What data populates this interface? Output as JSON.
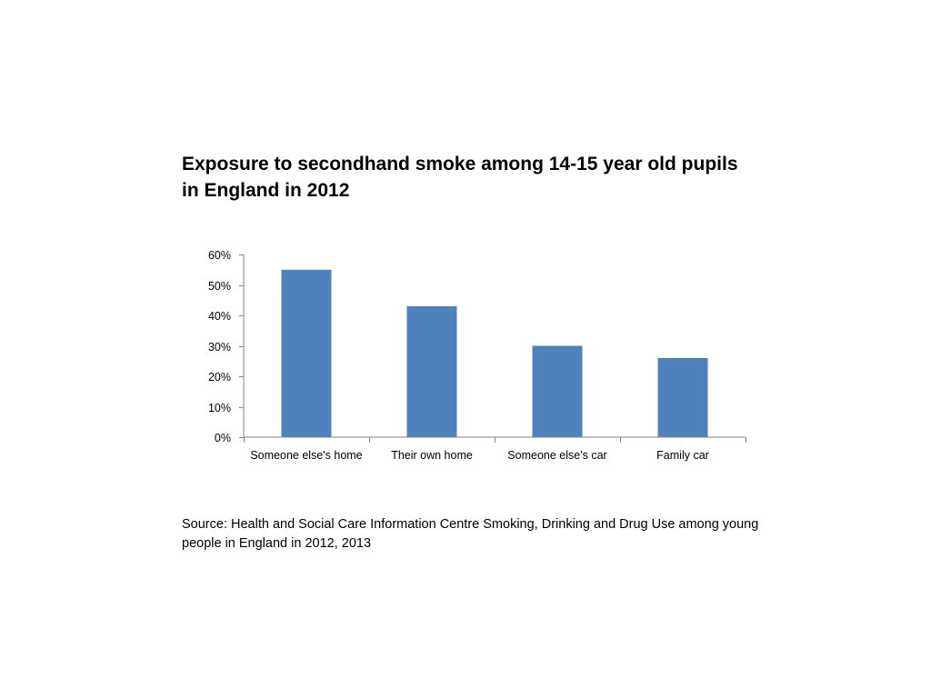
{
  "chart_data": {
    "type": "bar",
    "title": "Exposure to secondhand smoke among 14-15 year old pupils in England in 2012",
    "categories": [
      "Someone else's home",
      "Their own home",
      "Someone else's car",
      "Family car"
    ],
    "values": [
      55,
      43,
      30,
      26
    ],
    "ylim": [
      0,
      60
    ],
    "yticks": [
      0,
      10,
      20,
      30,
      40,
      50,
      60
    ],
    "ytick_labels": [
      "0%",
      "10%",
      "20%",
      "30%",
      "40%",
      "50%",
      "60%"
    ],
    "xlabel": "",
    "ylabel": "",
    "grid": false,
    "legend": "none",
    "bar_color": "#4F81BD",
    "axis_color": "#868686"
  },
  "source_note": "Source: Health and Social Care Information Centre Smoking, Drinking and Drug Use among young people in England in 2012, 2013"
}
